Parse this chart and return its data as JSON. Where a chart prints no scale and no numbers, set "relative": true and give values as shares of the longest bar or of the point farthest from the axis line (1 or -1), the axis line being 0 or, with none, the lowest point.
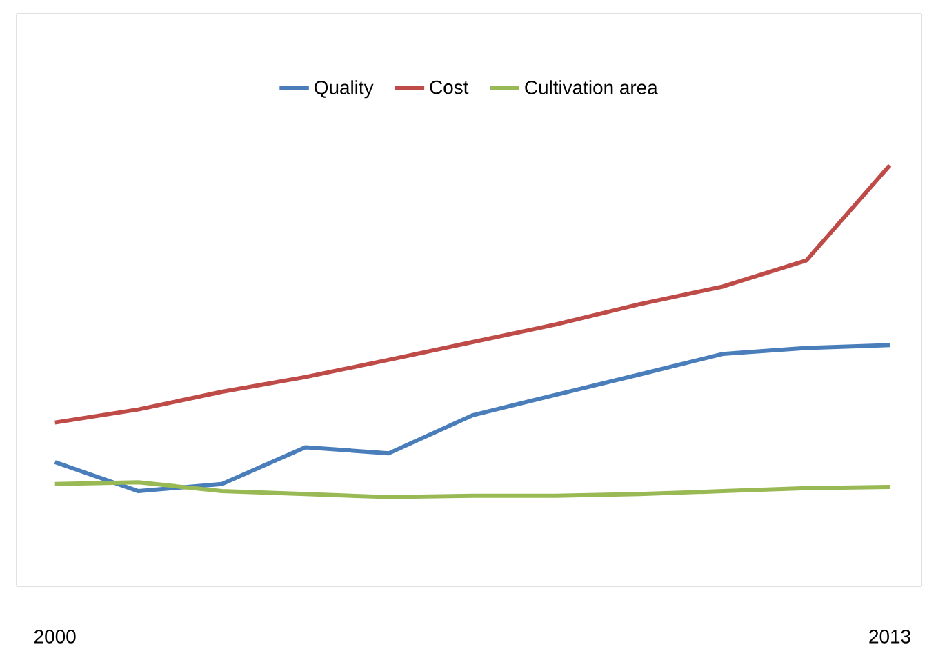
{
  "chart_data": {
    "type": "line",
    "relative": true,
    "legend": "top",
    "marker": "none",
    "line_style": "solid",
    "grid": false,
    "categories": [
      "2000",
      null,
      null,
      null,
      null,
      null,
      null,
      null,
      null,
      null,
      "2013"
    ],
    "series": [
      {
        "name": "Quality",
        "color": "#4a7ebb",
        "values": [
          0.295,
          0.226,
          0.243,
          0.33,
          0.316,
          0.406,
          0.455,
          0.503,
          0.552,
          0.566,
          0.573
        ]
      },
      {
        "name": "Cost",
        "color": "#be4b48",
        "values": [
          0.389,
          0.42,
          0.462,
          0.497,
          0.538,
          0.58,
          0.622,
          0.67,
          0.712,
          0.774,
          1
        ]
      },
      {
        "name": "Cultivation area",
        "color": "#98b954",
        "values": [
          0.243,
          0.247,
          0.226,
          0.219,
          0.212,
          0.215,
          0.215,
          0.219,
          0.226,
          0.233,
          0.236
        ]
      }
    ]
  }
}
